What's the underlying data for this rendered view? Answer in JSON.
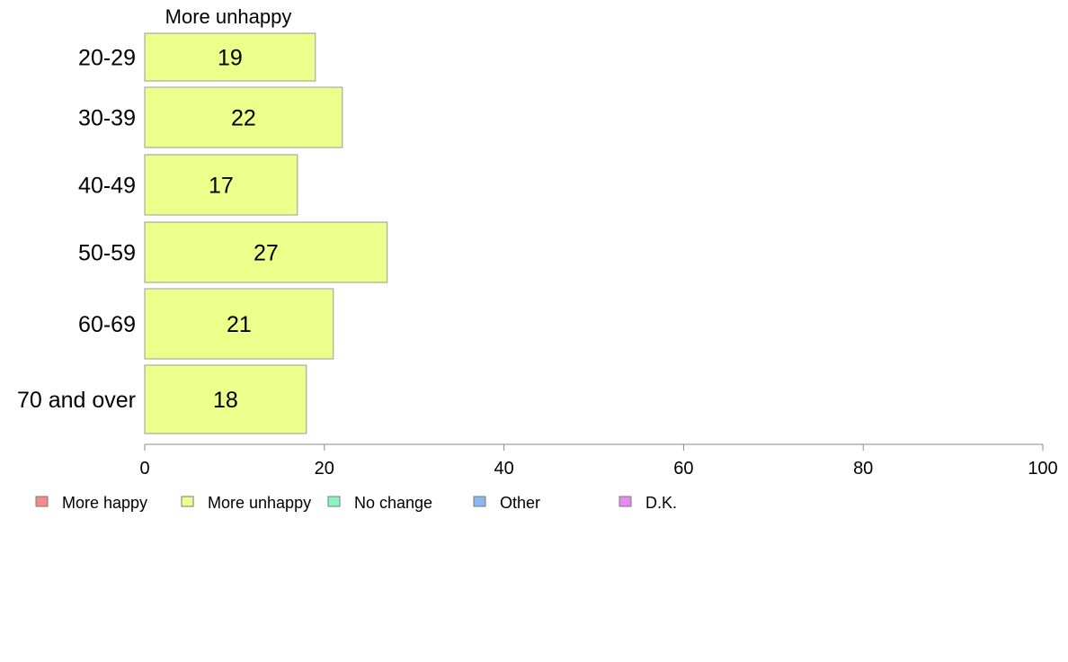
{
  "chart_data": {
    "type": "bar",
    "orientation": "horizontal",
    "series_title": "More unhappy",
    "categories": [
      "20-29",
      "30-39",
      "40-49",
      "50-59",
      "60-69",
      "70 and over"
    ],
    "values": [
      19,
      22,
      17,
      27,
      21,
      18
    ],
    "xlim": [
      0,
      100
    ],
    "xticks": [
      0,
      20,
      40,
      60,
      80,
      100
    ],
    "bar_color": "#ebff8a",
    "grid": false,
    "legend_position": "bottom",
    "legend": [
      {
        "label": "More happy",
        "color": "#f48a8a"
      },
      {
        "label": "More unhappy",
        "color": "#ebff8a"
      },
      {
        "label": "No change",
        "color": "#8af4bf"
      },
      {
        "label": "Other",
        "color": "#8ab6f4"
      },
      {
        "label": "D.K.",
        "color": "#e88af4"
      }
    ]
  }
}
